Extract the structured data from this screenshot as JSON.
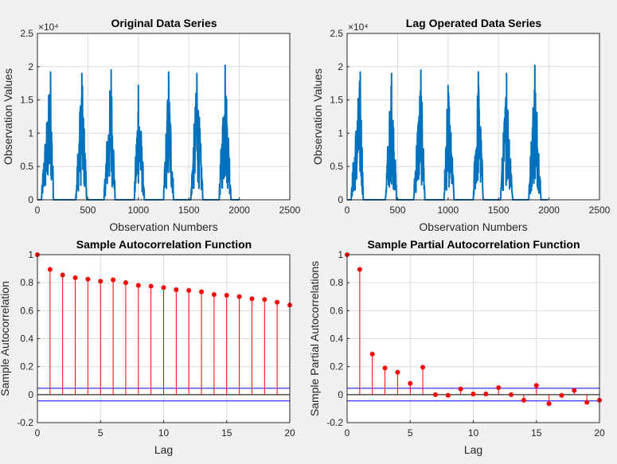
{
  "chart_data": [
    {
      "type": "line",
      "title": "Original Data Series",
      "xlabel": "Observation Numbers",
      "ylabel": "Observation Values",
      "exponent_label": "×10⁴",
      "xlim": [
        0,
        2500
      ],
      "ylim": [
        0,
        25000
      ],
      "xticks": [
        "0",
        "500",
        "1000",
        "1500",
        "2000",
        "2500"
      ],
      "yticks": [
        "0",
        "0.5",
        "1",
        "1.5",
        "2",
        "2.5"
      ],
      "grid": true,
      "color": "#0072BD",
      "series": [
        {
          "bursts": [
            {
              "start": 40,
              "peak_x": 130,
              "end": 160,
              "peak": 19200
            },
            {
              "start": 380,
              "peak_x": 440,
              "end": 490,
              "peak": 19000
            },
            {
              "start": 660,
              "peak_x": 730,
              "end": 770,
              "peak": 19500
            },
            {
              "start": 960,
              "peak_x": 1000,
              "end": 1060,
              "peak": 17200
            },
            {
              "start": 1250,
              "peak_x": 1300,
              "end": 1350,
              "peak": 19200
            },
            {
              "start": 1520,
              "peak_x": 1580,
              "end": 1640,
              "peak": 19000
            },
            {
              "start": 1800,
              "peak_x": 1860,
              "end": 1920,
              "peak": 20200
            }
          ],
          "last_x": 2000
        }
      ]
    },
    {
      "type": "line",
      "title": "Lag Operated Data Series",
      "xlabel": "Observation Numbers",
      "ylabel": "Observation Values",
      "exponent_label": "×10⁴",
      "xlim": [
        0,
        2500
      ],
      "ylim": [
        0,
        25000
      ],
      "xticks": [
        "0",
        "500",
        "1000",
        "1500",
        "2000",
        "2500"
      ],
      "yticks": [
        "0",
        "0.5",
        "1",
        "1.5",
        "2",
        "2.5"
      ],
      "grid": true,
      "color": "#0072BD",
      "series": [
        {
          "bursts": [
            {
              "start": 40,
              "peak_x": 130,
              "end": 160,
              "peak": 19200
            },
            {
              "start": 380,
              "peak_x": 440,
              "end": 490,
              "peak": 19000
            },
            {
              "start": 660,
              "peak_x": 730,
              "end": 770,
              "peak": 19500
            },
            {
              "start": 960,
              "peak_x": 1000,
              "end": 1060,
              "peak": 17200
            },
            {
              "start": 1250,
              "peak_x": 1300,
              "end": 1350,
              "peak": 19200
            },
            {
              "start": 1520,
              "peak_x": 1580,
              "end": 1640,
              "peak": 19000
            },
            {
              "start": 1800,
              "peak_x": 1860,
              "end": 1920,
              "peak": 20200
            }
          ],
          "last_x": 1990
        }
      ]
    },
    {
      "type": "stem",
      "title": "Sample Autocorrelation Function",
      "xlabel": "Lag",
      "ylabel": "Sample Autocorrelation",
      "xlim": [
        0,
        20
      ],
      "ylim": [
        -0.2,
        1
      ],
      "xticks": [
        "0",
        "5",
        "10",
        "15",
        "20"
      ],
      "yticks": [
        "-0.2",
        "0",
        "0.2",
        "0.4",
        "0.6",
        "0.8",
        "1"
      ],
      "grid": true,
      "stem_color": "#FF0000",
      "bound_color": "#0000FF",
      "bounds": [
        0.045,
        -0.045
      ],
      "x": [
        0,
        1,
        2,
        3,
        4,
        5,
        6,
        7,
        8,
        9,
        10,
        11,
        12,
        13,
        14,
        15,
        16,
        17,
        18,
        19,
        20
      ],
      "values": [
        1.0,
        0.895,
        0.855,
        0.835,
        0.825,
        0.81,
        0.82,
        0.8,
        0.78,
        0.775,
        0.765,
        0.75,
        0.745,
        0.735,
        0.715,
        0.71,
        0.7,
        0.685,
        0.68,
        0.66,
        0.64
      ]
    },
    {
      "type": "stem",
      "title": "Sample Partial Autocorrelation Function",
      "xlabel": "Lag",
      "ylabel": "Sample Partial Autocorrelations",
      "xlim": [
        0,
        20
      ],
      "ylim": [
        -0.2,
        1
      ],
      "xticks": [
        "0",
        "5",
        "10",
        "15",
        "20"
      ],
      "yticks": [
        "-0.2",
        "0",
        "0.2",
        "0.4",
        "0.6",
        "0.8",
        "1"
      ],
      "grid": true,
      "stem_color": "#FF0000",
      "bound_color": "#0000FF",
      "bounds": [
        0.045,
        -0.045
      ],
      "x": [
        0,
        1,
        2,
        3,
        4,
        5,
        6,
        7,
        8,
        9,
        10,
        11,
        12,
        13,
        14,
        15,
        16,
        17,
        18,
        19,
        20
      ],
      "values": [
        1.0,
        0.895,
        0.29,
        0.19,
        0.16,
        0.08,
        0.195,
        0.0,
        -0.005,
        0.04,
        0.005,
        0.005,
        0.05,
        0.0,
        -0.04,
        0.065,
        -0.065,
        -0.005,
        0.03,
        -0.055,
        -0.04
      ]
    }
  ]
}
